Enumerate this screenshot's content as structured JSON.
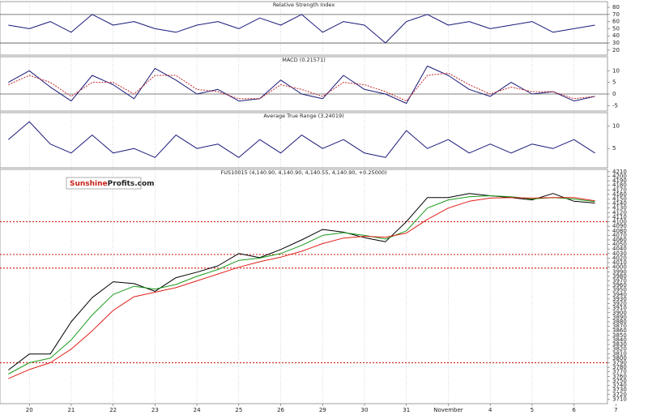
{
  "chart_data": [
    {
      "type": "line",
      "title": "Relative Strength Index",
      "x": [
        -0.5,
        0,
        0.5,
        1,
        1.5,
        2,
        2.5,
        3,
        3.5,
        4,
        4.5,
        5,
        5.5,
        6,
        6.5,
        7,
        7.5,
        8,
        8.5,
        9,
        9.5,
        10,
        10.5,
        11,
        11.5,
        12,
        12.5,
        13,
        13.5
      ],
      "series": [
        {
          "color": "#1a1a7a",
          "values": [
            55,
            50,
            60,
            45,
            70,
            55,
            60,
            50,
            45,
            55,
            60,
            50,
            65,
            55,
            70,
            45,
            60,
            55,
            30,
            60,
            70,
            55,
            60,
            50,
            55,
            60,
            45,
            50,
            55
          ]
        }
      ],
      "levels": [
        70,
        30
      ],
      "ylim": [
        13,
        88
      ],
      "yticks": [
        80,
        70,
        60,
        50,
        40,
        30,
        20
      ],
      "xlim": [
        -0.7,
        13.8
      ]
    },
    {
      "type": "line",
      "title": "MACD (0.21571)",
      "x": [
        -0.5,
        0,
        0.5,
        1,
        1.5,
        2,
        2.5,
        3,
        3.5,
        4,
        4.5,
        5,
        5.5,
        6,
        6.5,
        7,
        7.5,
        8,
        8.5,
        9,
        9.5,
        10,
        10.5,
        11,
        11.5,
        12,
        12.5,
        13,
        13.5
      ],
      "series": [
        {
          "color": "#1a1a7a",
          "values": [
            5,
            10,
            3,
            -3,
            8,
            4,
            -2,
            11,
            6,
            0,
            2,
            -3,
            -2,
            6,
            0,
            -2,
            8,
            2,
            0,
            -4,
            12,
            8,
            2,
            -1,
            5,
            0,
            1,
            -3,
            -1
          ]
        },
        {
          "color": "#c0282d",
          "dashed": true,
          "values": [
            4,
            8,
            5,
            -1,
            5,
            5,
            0,
            8,
            8,
            2,
            1,
            -2,
            -2,
            4,
            2,
            -1,
            5,
            4,
            1,
            -3,
            8,
            9,
            4,
            0,
            3,
            1,
            1,
            -2,
            -1
          ]
        }
      ],
      "levels": [
        0
      ],
      "ylim": [
        -7.3,
        16
      ],
      "yticks": [
        10,
        5,
        0,
        -5
      ],
      "xlim": [
        -0.7,
        13.8
      ]
    },
    {
      "type": "line",
      "title": "Average True Range (3.24019)",
      "x": [
        -0.5,
        0,
        0.5,
        1,
        1.5,
        2,
        2.5,
        3,
        3.5,
        4,
        4.5,
        5,
        5.5,
        6,
        6.5,
        7,
        7.5,
        8,
        8.5,
        9,
        9.5,
        10,
        10.5,
        11,
        11.5,
        12,
        12.5,
        13,
        13.5
      ],
      "series": [
        {
          "color": "#1a1a7a",
          "values": [
            7,
            11,
            6,
            4,
            8,
            4,
            5,
            3,
            8,
            5,
            6,
            3,
            7,
            4,
            8,
            5,
            7,
            4,
            3,
            9,
            5,
            7,
            4,
            6,
            4,
            6,
            5,
            7,
            4
          ]
        }
      ],
      "ylim": [
        0.7,
        13
      ],
      "yticks": [
        10,
        5
      ],
      "xlim": [
        -0.7,
        13.8
      ]
    },
    {
      "type": "line",
      "title": "FUS10015 (4,140.90, 4,140.90, 4,140.55, 4,140.90, +0.25000)",
      "annotations": [
        "Sunshine",
        "Profits.com"
      ],
      "x": [
        -0.5,
        0,
        0.5,
        1,
        1.5,
        2,
        2.5,
        3,
        3.5,
        4,
        4.5,
        5,
        5.5,
        6,
        6.5,
        7,
        7.5,
        8,
        8.5,
        9,
        9.5,
        10,
        10.5,
        11,
        11.5,
        12,
        12.5,
        13,
        13.5
      ],
      "series": [
        {
          "color": "#000000",
          "values": [
            3774,
            3809,
            3809,
            3880,
            3933,
            3968,
            3964,
            3947,
            3977,
            3989,
            4003,
            4030,
            4021,
            4039,
            4060,
            4083,
            4077,
            4065,
            4056,
            4100,
            4153,
            4153,
            4162,
            4157,
            4153,
            4148,
            4162,
            4145,
            4141
          ]
        },
        {
          "color": "#1a9a1a",
          "values": [
            3765,
            3790,
            3800,
            3840,
            3895,
            3940,
            3958,
            3952,
            3962,
            3980,
            3995,
            4015,
            4020,
            4030,
            4048,
            4070,
            4076,
            4070,
            4062,
            4080,
            4130,
            4148,
            4155,
            4157,
            4155,
            4150,
            4153,
            4150,
            4144
          ]
        },
        {
          "color": "#e0201a",
          "values": [
            3755,
            3775,
            3790,
            3820,
            3860,
            3905,
            3935,
            3945,
            3955,
            3970,
            3985,
            4000,
            4012,
            4022,
            4035,
            4052,
            4064,
            4068,
            4066,
            4075,
            4105,
            4130,
            4145,
            4152,
            4153,
            4152,
            4153,
            4153,
            4146
          ]
        }
      ],
      "levels": [
        4100,
        4028,
        3998,
        3790
      ],
      "level_color": "#d0302a",
      "ylim": [
        3700,
        4215
      ],
      "yticks": [
        4210,
        4200,
        4190,
        4180,
        4170,
        4160,
        4150,
        4140,
        4130,
        4120,
        4110,
        4100,
        4090,
        4080,
        4070,
        4060,
        4050,
        4040,
        4030,
        4020,
        4010,
        4000,
        3990,
        3980,
        3970,
        3960,
        3950,
        3940,
        3930,
        3920,
        3910,
        3900,
        3890,
        3880,
        3870,
        3860,
        3850,
        3840,
        3830,
        3820,
        3810,
        3800,
        3790,
        3780,
        3770,
        3760,
        3750,
        3740,
        3730,
        3720,
        3710
      ],
      "xlim": [
        -0.7,
        13.8
      ],
      "xticks": [
        {
          "value": 0,
          "label": "20"
        },
        {
          "value": 1,
          "label": "21"
        },
        {
          "value": 2,
          "label": "22"
        },
        {
          "value": 3,
          "label": "23"
        },
        {
          "value": 4,
          "label": "24"
        },
        {
          "value": 5,
          "label": "25"
        },
        {
          "value": 6,
          "label": "26"
        },
        {
          "value": 7,
          "label": "29"
        },
        {
          "value": 8,
          "label": "30"
        },
        {
          "value": 9,
          "label": "31"
        },
        {
          "value": 10,
          "label": "November"
        },
        {
          "value": 11,
          "label": "4"
        },
        {
          "value": 12,
          "label": "5"
        },
        {
          "value": 13,
          "label": "6"
        },
        {
          "value": 14,
          "label": "7"
        }
      ]
    }
  ]
}
